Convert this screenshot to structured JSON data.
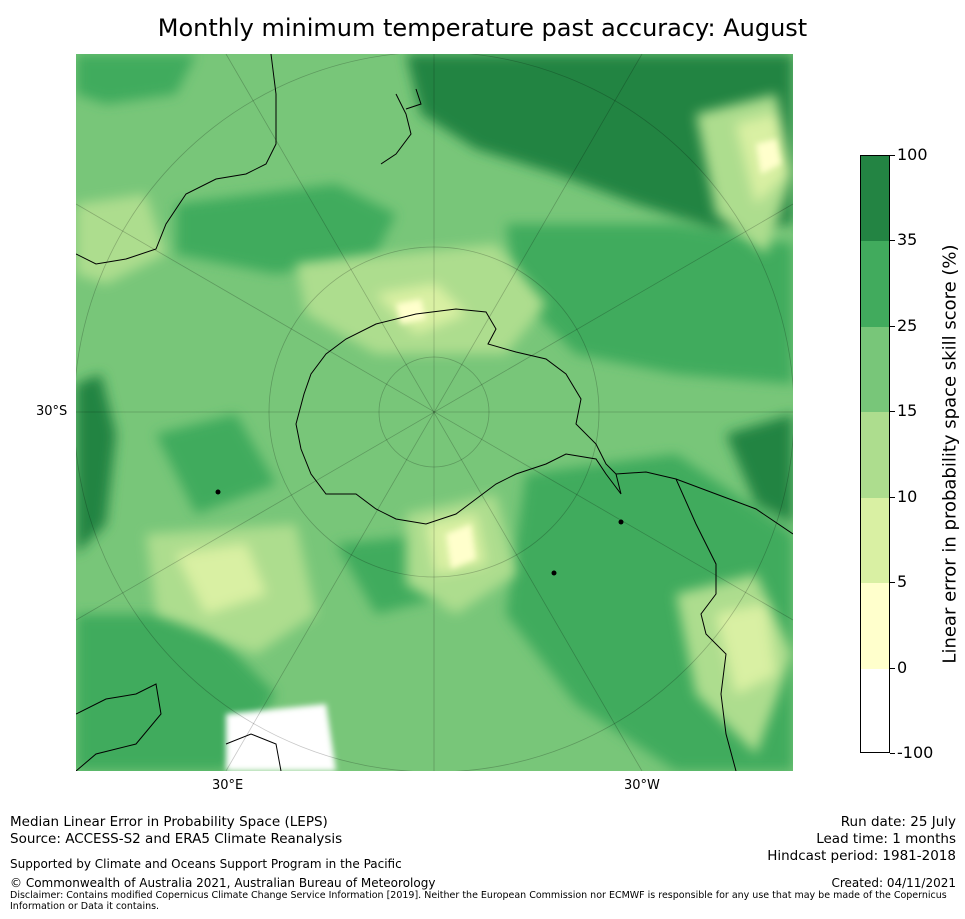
{
  "title": "Monthly minimum temperature past accuracy: August",
  "map": {
    "projection": "south-polar-stereographic",
    "tick_labels": {
      "left": "30°S",
      "bottom_left": "30°E",
      "bottom_right": "30°W"
    },
    "colors": {
      "c100": "#238443",
      "c35": "#41ab5d",
      "c25": "#78c679",
      "c15": "#addd8e",
      "c10": "#d9f0a3",
      "c5": "#ffffcc",
      "c0": "#ffffff"
    }
  },
  "colorbar": {
    "label": "Linear error in probability space skill score (%)",
    "levels": [
      "100",
      "35",
      "25",
      "15",
      "10",
      "5",
      "0",
      "-100"
    ],
    "colors": [
      "#238443",
      "#41ab5d",
      "#78c679",
      "#addd8e",
      "#d9f0a3",
      "#ffffcc",
      "#ffffff"
    ]
  },
  "footer": {
    "line1": "Median Linear Error in Probability Space (LEPS)",
    "line2": "Source: ACCESS-S2 and ERA5 Climate Reanalysis",
    "support": "Supported by Climate and Oceans Support Program in the Pacific",
    "copyright": "© Commonwealth of Australia 2021, Australian Bureau of Meteorology",
    "disclaimer": "Disclaimer: Contains modified Copernicus Climate Change Service Information [2019]. Neither the European Commission nor ECMWF is responsible for any use that may be made of the Copernicus Information or Data it contains.",
    "run_date": "Run date: 25 July",
    "lead_time": "Lead time: 1 months",
    "hindcast": "Hindcast period: 1981-2018",
    "created": "Created: 04/11/2021"
  }
}
